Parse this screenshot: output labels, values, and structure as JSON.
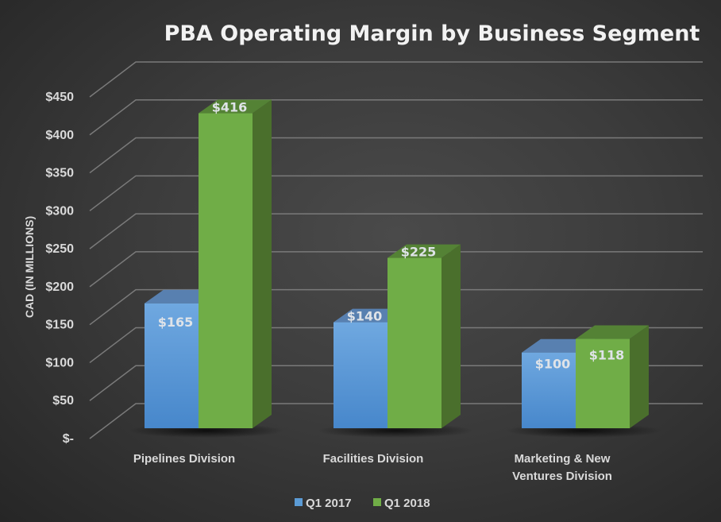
{
  "chart_data": {
    "type": "bar",
    "style": "3d-clustered-column",
    "title": "PBA Operating Margin by Business Segment",
    "xlabel": "",
    "ylabel": "CAD (IN MILLIONS)",
    "ylim": [
      0,
      450
    ],
    "grid": true,
    "ytick_values": [
      0,
      50,
      100,
      150,
      200,
      250,
      300,
      350,
      400,
      450
    ],
    "ytick_labels": [
      "$-",
      "$50",
      "$100",
      "$150",
      "$200",
      "$250",
      "$300",
      "$350",
      "$400",
      "$450"
    ],
    "categories": [
      [
        "Pipelines Division"
      ],
      [
        "Facilities Division"
      ],
      [
        "Marketing & New",
        "Ventures Division"
      ]
    ],
    "series": [
      {
        "name": "Q1 2017",
        "values": [
          165,
          140,
          100
        ],
        "labels": [
          "$165",
          "$140",
          "$100"
        ],
        "color": "#5b9bd5"
      },
      {
        "name": "Q1 2018",
        "values": [
          416,
          225,
          118
        ],
        "labels": [
          "$416",
          "$225",
          "$118"
        ],
        "color": "#70ad47"
      }
    ],
    "legend": {
      "position": "bottom",
      "entries": [
        "Q1 2017",
        "Q1 2018"
      ]
    }
  }
}
